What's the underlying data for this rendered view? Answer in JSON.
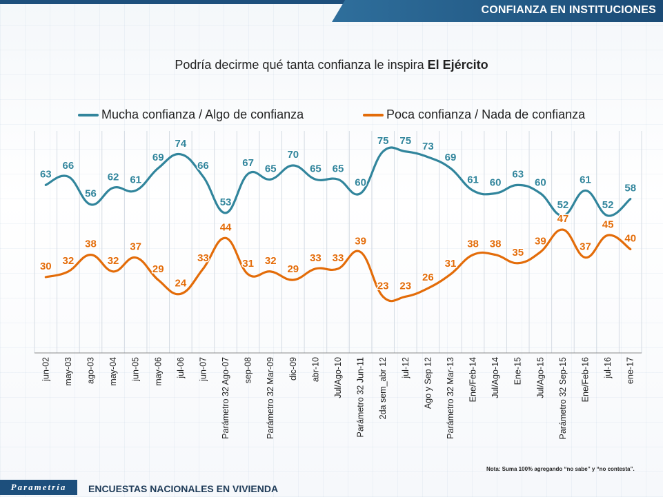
{
  "header": {
    "title": "CONFIANZA EN INSTITUCIONES"
  },
  "question": {
    "prefix": "Podría decirme qué tanta confianza le inspira ",
    "subject": "El Ejército"
  },
  "note": "Nota: Suma 100%  agregando “no sabe” y “no contesta”.",
  "footer": {
    "brand": "Parametría",
    "label": "ENCUESTAS NACIONALES EN VIVIENDA"
  },
  "colors": {
    "mucha": "#31859c",
    "poca": "#e36c09",
    "header": "#1d4f7c"
  },
  "chart_data": {
    "type": "line",
    "legend_position": "top",
    "grid": true,
    "categories": [
      "jun-02",
      "may-03",
      "ago-03",
      "may-04",
      "jun-05",
      "may-06",
      "jul-06",
      "jun-07",
      "Parámetro 32 Ago-07",
      "sep-08",
      "Parámetro 32 Mar-09",
      "dic-09",
      "abr-10",
      "Jul/Ago-10",
      "Parámetro 32 Jun-11",
      "2da sem_abr 12",
      "jul-12",
      "Ago y Sep 12",
      "Parámetro 32 Mar-13",
      "Ene/Feb-14",
      "Jul/Ago-14",
      "Ene-15",
      "Jul/Ago-15",
      "Parámetro 32 Sep-15",
      "Ene/Feb-16",
      "jul-16",
      "ene-17"
    ],
    "series": [
      {
        "name": "Mucha confianza / Algo de confianza",
        "values": [
          63,
          66,
          56,
          62,
          61,
          69,
          74,
          66,
          53,
          67,
          65,
          70,
          65,
          65,
          60,
          75,
          75,
          73,
          69,
          61,
          60,
          63,
          60,
          52,
          61,
          52,
          58
        ]
      },
      {
        "name": "Poca confianza / Nada de confianza",
        "values": [
          30,
          32,
          38,
          32,
          37,
          29,
          24,
          33,
          44,
          31,
          32,
          29,
          33,
          33,
          39,
          23,
          23,
          26,
          31,
          38,
          38,
          35,
          39,
          47,
          37,
          45,
          40
        ]
      }
    ]
  }
}
